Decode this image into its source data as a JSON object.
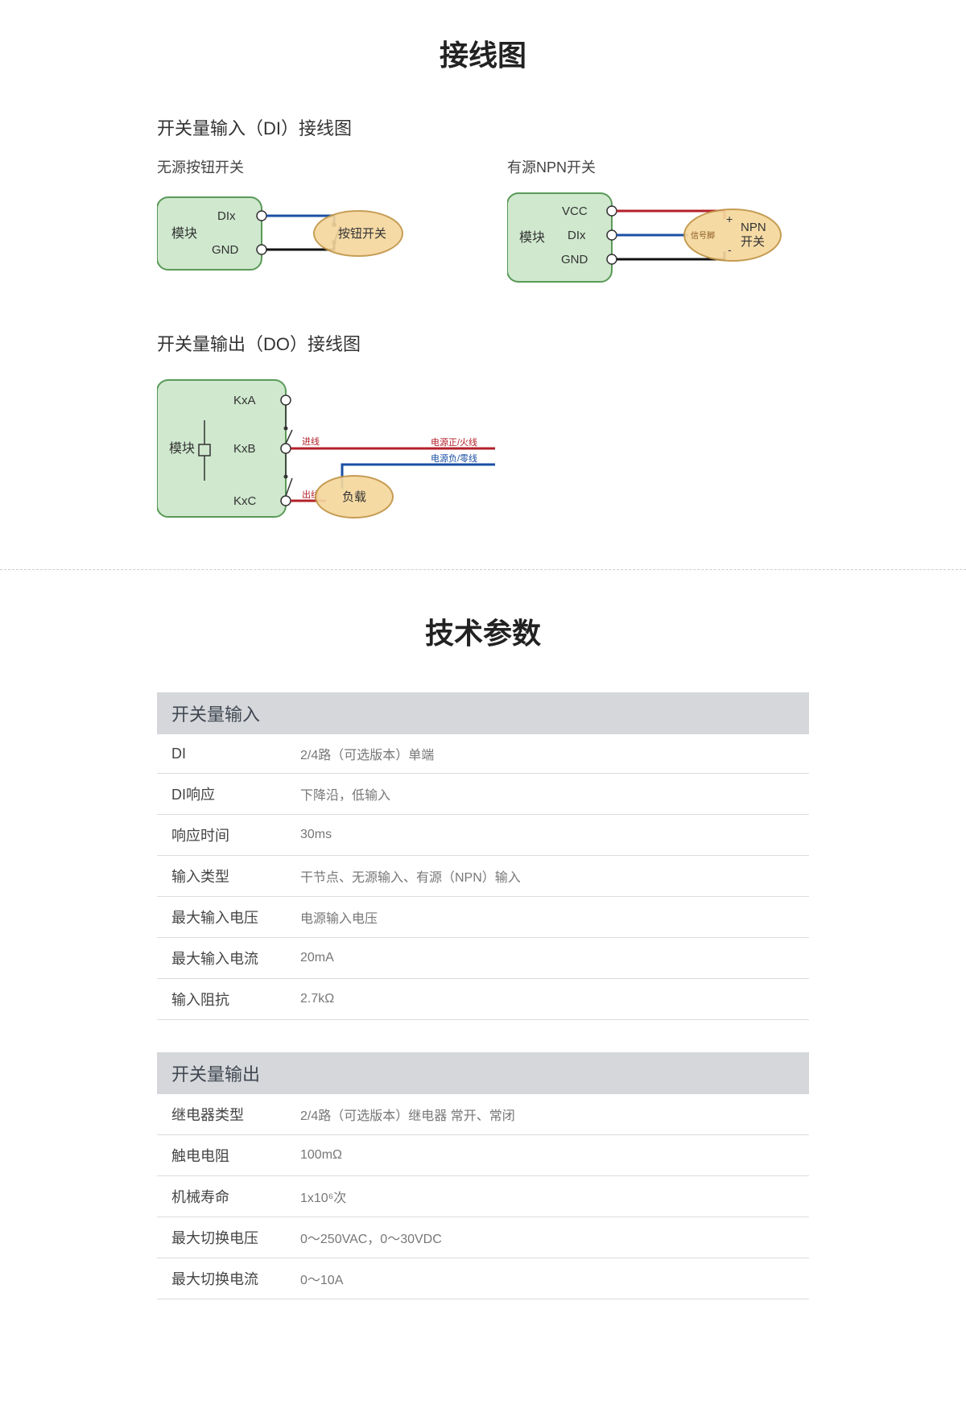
{
  "title1": "接线图",
  "title2": "技术参数",
  "di_section_title": "开关量输入（DI）接线图",
  "do_section_title": "开关量输出（DO）接线图",
  "diagrams": {
    "colors": {
      "module_fill": "#cfe8ce",
      "module_stroke": "#5a9a58",
      "device_fill": "#f5d79d",
      "device_stroke": "#c19445",
      "wire_blue": "#1b4fa3",
      "wire_red": "#b3202a",
      "wire_black": "#111111",
      "text": "#333333",
      "small_text": "#8a5a20"
    },
    "passive": {
      "title": "无源按钮开关",
      "module_label": "模块",
      "pins": [
        "DIx",
        "GND"
      ],
      "device_label": "按钮开关"
    },
    "npn": {
      "title": "有源NPN开关",
      "module_label": "模块",
      "pins": [
        "VCC",
        "DIx",
        "GND"
      ],
      "device_label": "NPN\n开关",
      "signal_label": "信号脚",
      "plus": "+",
      "minus": "-"
    },
    "do": {
      "module_label": "模块",
      "pins": [
        "KxA",
        "KxB",
        "KxC"
      ],
      "device_label": "负载",
      "in_label": "进线",
      "out_label": "出线",
      "line_pos": "电源正/火线",
      "line_neg": "电源负/零线"
    }
  },
  "specs": {
    "input": {
      "header": "开关量输入",
      "rows": [
        {
          "k": "DI",
          "v": "2/4路（可选版本）单端"
        },
        {
          "k": "DI响应",
          "v": "下降沿，低输入"
        },
        {
          "k": "响应时间",
          "v": "30ms"
        },
        {
          "k": "输入类型",
          "v": "干节点、无源输入、有源（NPN）输入"
        },
        {
          "k": "最大输入电压",
          "v": "电源输入电压"
        },
        {
          "k": "最大输入电流",
          "v": "20mA"
        },
        {
          "k": "输入阻抗",
          "v": "2.7kΩ"
        }
      ]
    },
    "output": {
      "header": "开关量输出",
      "rows": [
        {
          "k": "继电器类型",
          "v": "2/4路（可选版本）继电器 常开、常闭"
        },
        {
          "k": "触电电阻",
          "v": "100mΩ"
        },
        {
          "k": "机械寿命",
          "v": "1x10⁶次"
        },
        {
          "k": "最大切换电压",
          "v": "0～250VAC，0～30VDC"
        },
        {
          "k": "最大切换电流",
          "v": "0～10A"
        }
      ]
    }
  }
}
